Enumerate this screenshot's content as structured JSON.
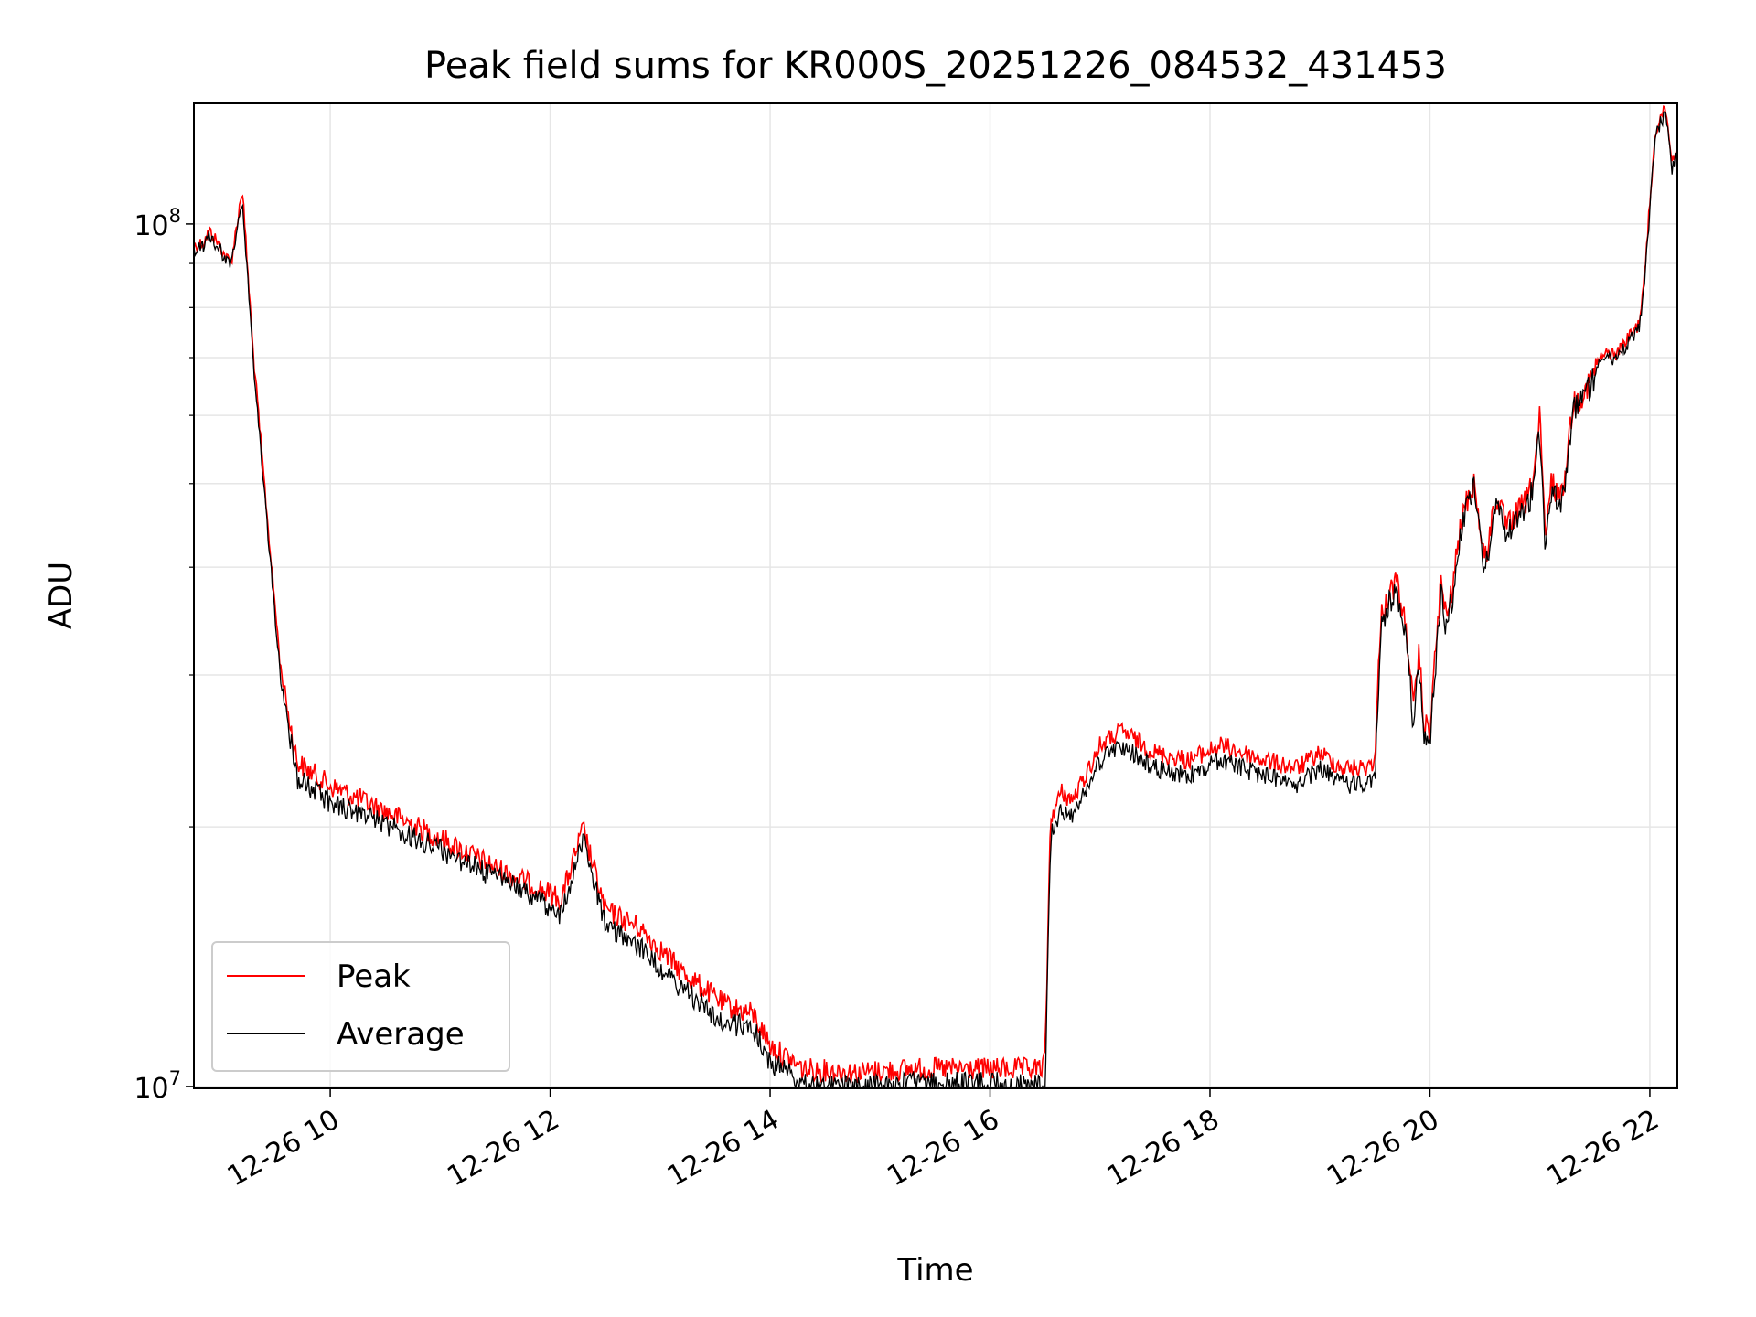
{
  "chart_data": {
    "type": "line",
    "title": "Peak field sums for KR000S_20251226_084532_431453",
    "xlabel": "Time",
    "ylabel": "ADU",
    "yscale": "log",
    "xlim": [
      8.76,
      22.25
    ],
    "ylim": [
      9950000.0,
      138000000.0
    ],
    "x_unit": "hours since 12-26 00:00",
    "x_ticks": [
      {
        "value": 10,
        "label": "12-26 10"
      },
      {
        "value": 12,
        "label": "12-26 12"
      },
      {
        "value": 14,
        "label": "12-26 14"
      },
      {
        "value": 16,
        "label": "12-26 16"
      },
      {
        "value": 18,
        "label": "12-26 18"
      },
      {
        "value": 20,
        "label": "12-26 20"
      },
      {
        "value": 22,
        "label": "12-26 22"
      }
    ],
    "y_major_ticks": [
      {
        "value": 10000000,
        "base": "10",
        "exp": "7"
      },
      {
        "value": 100000000,
        "base": "10",
        "exp": "8"
      }
    ],
    "y_minor_ticks": [
      20000000,
      30000000,
      40000000,
      50000000,
      60000000,
      70000000,
      80000000,
      90000000
    ],
    "grid": true,
    "legend_position": "lower-left",
    "series": [
      {
        "name": "Peak",
        "color": "#ff0000",
        "x": [
          8.76,
          8.85,
          8.9,
          9.0,
          9.05,
          9.1,
          9.2,
          9.3,
          9.45,
          9.55,
          9.7,
          10.0,
          10.5,
          11.0,
          11.5,
          11.9,
          12.1,
          12.3,
          12.5,
          12.8,
          13.2,
          13.6,
          13.85,
          14.0,
          14.3,
          14.8,
          15.3,
          15.8,
          16.2,
          16.45,
          16.5,
          16.55,
          16.65,
          16.75,
          16.9,
          17.0,
          17.2,
          17.5,
          17.8,
          18.1,
          18.5,
          18.8,
          19.0,
          19.2,
          19.4,
          19.5,
          19.55,
          19.6,
          19.7,
          19.8,
          19.85,
          19.9,
          19.95,
          20.0,
          20.1,
          20.15,
          20.2,
          20.3,
          20.4,
          20.5,
          20.6,
          20.7,
          20.8,
          20.9,
          20.95,
          21.0,
          21.05,
          21.1,
          21.2,
          21.3,
          21.4,
          21.5,
          21.6,
          21.7,
          21.8,
          21.9,
          21.95,
          22.0,
          22.05,
          22.1,
          22.15,
          22.2,
          22.25
        ],
        "values": [
          96000000,
          97000000,
          100000000,
          96000000,
          93000000,
          92000000,
          112000000,
          72000000,
          43000000,
          31000000,
          24500000,
          23000000,
          21500000,
          20000000,
          18500000,
          17500000,
          17000000,
          20500000,
          16500000,
          15800000,
          14000000,
          12800000,
          12500000,
          11500000,
          10800000,
          10700000,
          10800000,
          10800000,
          10800000,
          10800000,
          11000000,
          21000000,
          22500000,
          22000000,
          24000000,
          25500000,
          26500000,
          25000000,
          24500000,
          25500000,
          24500000,
          24000000,
          25000000,
          24000000,
          24000000,
          24500000,
          36000000,
          38000000,
          40000000,
          34000000,
          28000000,
          33000000,
          27000000,
          27000000,
          40000000,
          36000000,
          39000000,
          48000000,
          52000000,
          42000000,
          50000000,
          46000000,
          48000000,
          50000000,
          54000000,
          62000000,
          44000000,
          52000000,
          50000000,
          64000000,
          66000000,
          70000000,
          72000000,
          72000000,
          75000000,
          78000000,
          88000000,
          108000000,
          130000000,
          136000000,
          138000000,
          120000000,
          126000000
        ]
      },
      {
        "name": "Average",
        "color": "#000000",
        "x": [
          8.76,
          8.85,
          8.9,
          9.0,
          9.05,
          9.1,
          9.2,
          9.3,
          9.45,
          9.55,
          9.7,
          10.0,
          10.5,
          11.0,
          11.5,
          11.9,
          12.1,
          12.3,
          12.5,
          12.8,
          13.2,
          13.6,
          13.85,
          14.0,
          14.3,
          14.8,
          15.3,
          15.8,
          16.2,
          16.45,
          16.5,
          16.55,
          16.65,
          16.75,
          16.9,
          17.0,
          17.2,
          17.5,
          17.8,
          18.1,
          18.5,
          18.8,
          19.0,
          19.2,
          19.4,
          19.5,
          19.55,
          19.6,
          19.7,
          19.8,
          19.85,
          19.9,
          19.95,
          20.0,
          20.1,
          20.15,
          20.2,
          20.3,
          20.4,
          20.5,
          20.6,
          20.7,
          20.8,
          20.9,
          20.95,
          21.0,
          21.05,
          21.1,
          21.2,
          21.3,
          21.4,
          21.5,
          21.6,
          21.7,
          21.8,
          21.9,
          21.95,
          22.0,
          22.05,
          22.1,
          22.15,
          22.2,
          22.25
        ],
        "values": [
          95000000,
          96000000,
          99000000,
          95000000,
          92000000,
          91000000,
          109000000,
          70000000,
          42000000,
          30000000,
          23500000,
          22000000,
          20800000,
          19400000,
          18000000,
          17000000,
          16200000,
          20000000,
          15800000,
          15000000,
          13400000,
          12200000,
          12100000,
          11000000,
          10400000,
          10300000,
          10400000,
          10400000,
          10400000,
          10300000,
          10200000,
          20000000,
          21500000,
          21000000,
          23000000,
          24500000,
          25500000,
          24000000,
          23500000,
          24500000,
          23500000,
          23000000,
          24000000,
          23000000,
          23000000,
          23500000,
          35000000,
          37000000,
          39000000,
          33000000,
          27000000,
          32000000,
          26000000,
          26000000,
          39000000,
          35000000,
          38000000,
          47000000,
          51000000,
          41000000,
          49000000,
          45000000,
          47000000,
          49000000,
          53000000,
          60000000,
          43000000,
          51000000,
          49000000,
          63000000,
          65000000,
          69000000,
          71000000,
          71000000,
          74000000,
          77000000,
          86000000,
          106000000,
          128000000,
          134000000,
          136000000,
          118000000,
          124000000
        ]
      }
    ]
  }
}
